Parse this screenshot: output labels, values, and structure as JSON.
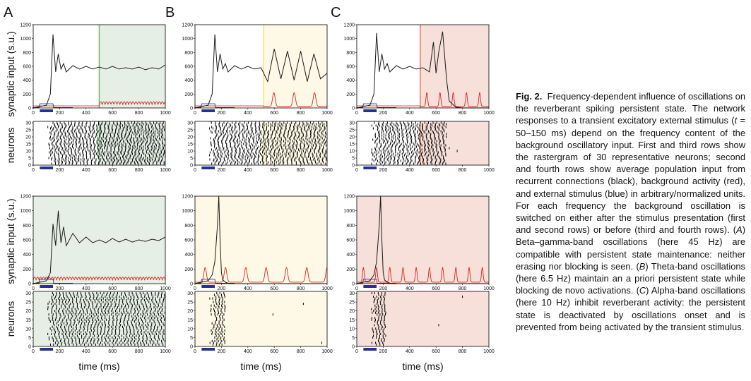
{
  "figure": {
    "panel_letters": [
      "A",
      "B",
      "C"
    ],
    "row_ylabels": {
      "synaptic": "synaptic input (s.u.)",
      "neurons": "neurons"
    },
    "xlabel": "time (ms)",
    "colors": {
      "recurrent": "#1a1a1a",
      "background": "#d9261c",
      "stimulus": "#2b2f8f",
      "shade_A": "#e6efe6",
      "shade_B": "#fdf9e6",
      "shade_C": "#f6e0d9",
      "onset_A": "#6cb86c",
      "onset_B": "#f0e27a",
      "onset_C": "#e8735a"
    }
  },
  "chart_data": [
    {
      "panel": "A",
      "row": 1,
      "type": "line",
      "ylim": [
        0,
        1200
      ],
      "xlim": [
        0,
        1000
      ],
      "yticks": [
        "0",
        "200",
        "400",
        "600",
        "800",
        "1000",
        "1200"
      ],
      "xticks": [
        "0",
        "200",
        "400",
        "600",
        "800",
        "1000"
      ],
      "oscillation_onset_ms": 500,
      "oscillation_hz": 45,
      "stimulus_ms": [
        50,
        150
      ],
      "series": [
        {
          "name": "recurrent",
          "x": [
            0,
            100,
            130,
            150,
            170,
            190,
            210,
            230,
            250,
            300,
            350,
            400,
            450,
            500,
            550,
            600,
            650,
            700,
            750,
            800,
            850,
            900,
            950,
            1000
          ],
          "y": [
            0,
            40,
            200,
            1060,
            520,
            780,
            560,
            640,
            520,
            610,
            560,
            600,
            560,
            590,
            560,
            600,
            560,
            580,
            560,
            590,
            550,
            580,
            560,
            620
          ]
        }
      ]
    },
    {
      "panel": "B",
      "row": 1,
      "type": "line",
      "ylim": [
        0,
        1200
      ],
      "xlim": [
        0,
        1000
      ],
      "yticks": [
        "0",
        "200",
        "400",
        "600",
        "800",
        "1000",
        "1200"
      ],
      "xticks": [
        "0",
        "200",
        "400",
        "600",
        "800",
        "1000"
      ],
      "oscillation_onset_ms": 520,
      "oscillation_hz": 6.5,
      "stimulus_ms": [
        50,
        150
      ],
      "series": [
        {
          "name": "recurrent",
          "x": [
            0,
            100,
            130,
            150,
            170,
            190,
            210,
            230,
            250,
            300,
            350,
            400,
            450,
            500,
            550,
            600,
            650,
            700,
            750,
            800,
            850,
            900,
            950,
            1000
          ],
          "y": [
            0,
            40,
            200,
            1060,
            520,
            780,
            560,
            640,
            520,
            610,
            560,
            600,
            560,
            580,
            380,
            850,
            420,
            820,
            400,
            820,
            380,
            780,
            420,
            500
          ]
        }
      ]
    },
    {
      "panel": "C",
      "row": 1,
      "type": "line",
      "ylim": [
        0,
        1200
      ],
      "xlim": [
        0,
        1000
      ],
      "yticks": [
        "0",
        "200",
        "400",
        "600",
        "800",
        "1000",
        "1200"
      ],
      "xticks": [
        "0",
        "200",
        "400",
        "600",
        "800",
        "1000"
      ],
      "oscillation_onset_ms": 480,
      "oscillation_hz": 10,
      "stimulus_ms": [
        50,
        150
      ],
      "series": [
        {
          "name": "recurrent",
          "x": [
            0,
            100,
            130,
            150,
            170,
            190,
            210,
            230,
            250,
            300,
            350,
            400,
            450,
            500,
            550,
            580,
            600,
            620,
            650,
            680,
            700,
            750,
            800,
            1000
          ],
          "y": [
            0,
            40,
            200,
            1080,
            520,
            780,
            560,
            640,
            520,
            610,
            560,
            600,
            560,
            580,
            520,
            950,
            500,
            800,
            1100,
            400,
            100,
            10,
            0,
            0
          ]
        }
      ]
    },
    {
      "panel": "A",
      "row": 3,
      "type": "line",
      "ylim": [
        0,
        1200
      ],
      "xlim": [
        0,
        1000
      ],
      "yticks": [
        "0",
        "200",
        "400",
        "600",
        "800",
        "1000",
        "1200"
      ],
      "xticks": [
        "0",
        "200",
        "400",
        "600",
        "800",
        "1000"
      ],
      "oscillation_onset_ms": 0,
      "oscillation_hz": 45,
      "stimulus_ms": [
        50,
        150
      ],
      "series": [
        {
          "name": "recurrent",
          "x": [
            0,
            100,
            130,
            150,
            170,
            190,
            210,
            230,
            250,
            300,
            350,
            400,
            450,
            500,
            550,
            600,
            650,
            700,
            750,
            800,
            850,
            900,
            950,
            1000
          ],
          "y": [
            0,
            40,
            150,
            820,
            520,
            1000,
            560,
            780,
            520,
            690,
            560,
            640,
            560,
            600,
            560,
            620,
            570,
            610,
            570,
            600,
            580,
            610,
            590,
            640
          ]
        }
      ]
    },
    {
      "panel": "B",
      "row": 3,
      "type": "line",
      "ylim": [
        0,
        1200
      ],
      "xlim": [
        0,
        1000
      ],
      "yticks": [
        "0",
        "200",
        "400",
        "600",
        "800",
        "1000",
        "1200"
      ],
      "xticks": [
        "0",
        "200",
        "400",
        "600",
        "800",
        "1000"
      ],
      "oscillation_onset_ms": 0,
      "oscillation_hz": 6.5,
      "stimulus_ms": [
        50,
        150
      ],
      "series": [
        {
          "name": "recurrent",
          "x": [
            0,
            100,
            130,
            150,
            170,
            180,
            190,
            200,
            210,
            230,
            260,
            300,
            350,
            400,
            1000
          ],
          "y": [
            0,
            40,
            120,
            300,
            800,
            1200,
            600,
            150,
            50,
            20,
            0,
            0,
            0,
            0,
            0
          ]
        }
      ]
    },
    {
      "panel": "C",
      "row": 3,
      "type": "line",
      "ylim": [
        0,
        1200
      ],
      "xlim": [
        0,
        1000
      ],
      "yticks": [
        "0",
        "200",
        "400",
        "600",
        "800",
        "1000",
        "1200"
      ],
      "xticks": [
        "0",
        "200",
        "400",
        "600",
        "800",
        "1000"
      ],
      "oscillation_onset_ms": 0,
      "oscillation_hz": 10,
      "stimulus_ms": [
        50,
        150
      ],
      "series": [
        {
          "name": "recurrent",
          "x": [
            0,
            100,
            130,
            150,
            170,
            180,
            190,
            200,
            210,
            230,
            260,
            300,
            350,
            400,
            1000
          ],
          "y": [
            0,
            40,
            120,
            300,
            800,
            1200,
            600,
            150,
            50,
            20,
            0,
            0,
            0,
            0,
            0
          ]
        }
      ]
    }
  ],
  "caption": {
    "label": "Fig. 2.",
    "title": "Frequency-dependent influence of oscillations on the reverberant spiking persistent state.",
    "p1": "The network responses to a transient excitatory external stimulus (",
    "t": "t",
    "p2": " = 50–150 ms) depend on the frequency content of the background oscillatory input. First and third rows show the rastergram of 30 representative neurons; second and fourth rows show average population input from recurrent connections (black), background activity (red), and external stimulus (blue) in arbitrary/normalized units. For each frequency the background oscillation is switched on either after the stimulus presentation (first and second rows) or before (third and fourth rows). (",
    "A": "A",
    "p3": ") Beta–gamma-band oscillations (here 45 Hz) are compatible with persistent state maintenance: neither erasing nor blocking is seen. (",
    "B": "B",
    "p4": ") Theta-band oscillations (here 6.5 Hz) maintain an a priori persistent state while blocking de novo activations. (",
    "C": "C",
    "p5": ") Alpha-band oscillations (here 10 Hz) inhibit reverberant activity: the persistent state is deactivated by oscillations onset and is prevented from being activated by the transient stimulus."
  }
}
